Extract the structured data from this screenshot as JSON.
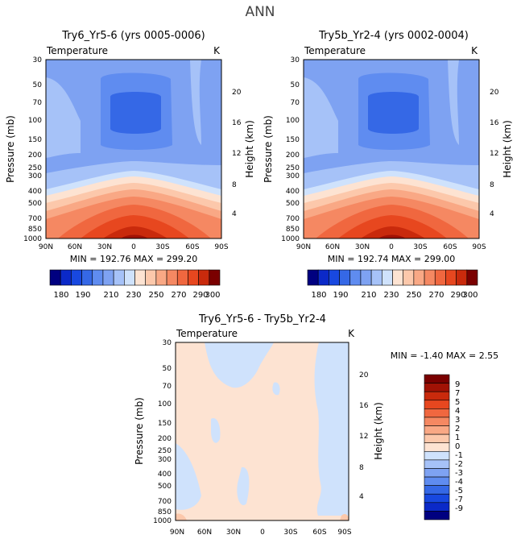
{
  "title": "ANN",
  "colors": {
    "cool": [
      "#000080",
      "#0b29c8",
      "#1848e0",
      "#3568e6",
      "#5f8cf0",
      "#7ea2f2",
      "#a6c2f8",
      "#cfe2fc"
    ],
    "warm": [
      "#fde3d2",
      "#fcc8ab",
      "#f9a885",
      "#f58862",
      "#f0673f",
      "#e7471f",
      "#c92a0c",
      "#a11205",
      "#7a0000"
    ]
  },
  "chart_data": [
    {
      "type": "heatmap",
      "id": "panel-a",
      "title": "Try6_Yr5-6 (yrs 0005-0006)",
      "variable_label": "Temperature",
      "units_label": "K",
      "ylabel": "Pressure (mb)",
      "ylabel_right": "Height (km)",
      "x_ticks": [
        "90N",
        "60N",
        "30N",
        "0",
        "30S",
        "60S",
        "90S"
      ],
      "y_ticks": [
        "30",
        "50",
        "70",
        "100",
        "150",
        "200",
        "250",
        "300",
        "400",
        "500",
        "700",
        "850",
        "1000"
      ],
      "y_ticks_right": [
        "20",
        "16",
        "12",
        "8",
        "4"
      ],
      "stats": "MIN = 192.76 MAX = 299.20",
      "min": 192.76,
      "max": 299.2
    },
    {
      "type": "heatmap",
      "id": "panel-b",
      "title": "Try5b_Yr2-4 (yrs 0002-0004)",
      "variable_label": "Temperature",
      "units_label": "K",
      "ylabel": "Pressure (mb)",
      "ylabel_right": "Height (km)",
      "x_ticks": [
        "90N",
        "60N",
        "30N",
        "0",
        "30S",
        "60S",
        "90S"
      ],
      "y_ticks": [
        "30",
        "50",
        "70",
        "100",
        "150",
        "200",
        "250",
        "300",
        "400",
        "500",
        "700",
        "850",
        "1000"
      ],
      "y_ticks_right": [
        "20",
        "16",
        "12",
        "8",
        "4"
      ],
      "stats": "MIN = 192.74 MAX = 299.00",
      "min": 192.74,
      "max": 299.0
    },
    {
      "type": "heatmap",
      "id": "panel-diff",
      "title": "Try6_Yr5-6 - Try5b_Yr2-4",
      "variable_label": "Temperature",
      "units_label": "K",
      "ylabel": "Pressure (mb)",
      "ylabel_right": "Height (km)",
      "x_ticks": [
        "90N",
        "60N",
        "30N",
        "0",
        "30S",
        "60S",
        "90S"
      ],
      "y_ticks": [
        "30",
        "50",
        "70",
        "100",
        "150",
        "200",
        "250",
        "300",
        "400",
        "500",
        "700",
        "850",
        "1000"
      ],
      "y_ticks_right": [
        "20",
        "16",
        "12",
        "8",
        "4"
      ],
      "stats": "MIN = -1.40 MAX = 2.55",
      "min": -1.4,
      "max": 2.55
    }
  ],
  "colorbar_main": {
    "labels": [
      "180",
      "190",
      "210",
      "230",
      "250",
      "270",
      "290",
      "300"
    ]
  },
  "colorbar_diff": {
    "labels": [
      "9",
      "7",
      "5",
      "4",
      "3",
      "2",
      "1",
      "0",
      "-1",
      "-2",
      "-3",
      "-4",
      "-5",
      "-7",
      "-9"
    ]
  }
}
